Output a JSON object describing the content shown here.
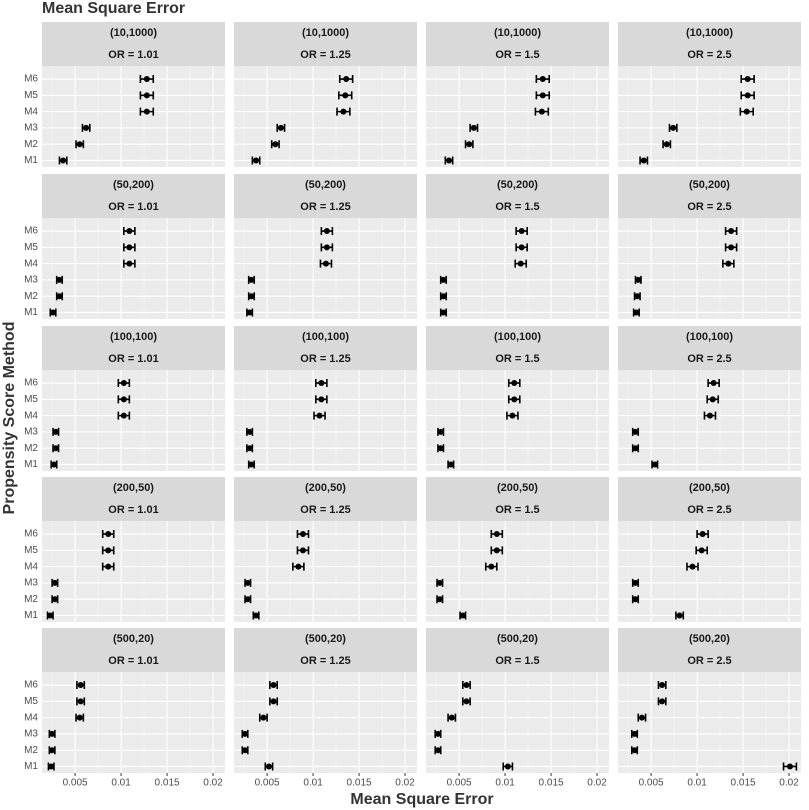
{
  "title": "Mean Square Error",
  "x_label": "Mean Square Error",
  "y_label": "Propensity Score Method",
  "chart_data": [
    {
      "type": "errorbar",
      "facet_row": "(10,1000)",
      "facet_col": "OR = 1.01",
      "categories": [
        "M1",
        "M2",
        "M3",
        "M4",
        "M5",
        "M6"
      ],
      "values": [
        0.0037,
        0.0055,
        0.0062,
        0.0128,
        0.0128,
        0.0128
      ],
      "errors": [
        0.0004,
        0.0004,
        0.0004,
        0.0007,
        0.0007,
        0.0007
      ],
      "xlim": [
        0.0014,
        0.0213
      ],
      "xticks": [
        0.005,
        0.01,
        0.015,
        0.02
      ],
      "grid": true,
      "color": "#000000"
    },
    {
      "type": "errorbar",
      "facet_row": "(10,1000)",
      "facet_col": "OR = 1.25",
      "categories": [
        "M1",
        "M2",
        "M3",
        "M4",
        "M5",
        "M6"
      ],
      "values": [
        0.0038,
        0.0059,
        0.0065,
        0.0133,
        0.0135,
        0.0136
      ],
      "errors": [
        0.0004,
        0.0004,
        0.0004,
        0.0007,
        0.0007,
        0.0007
      ],
      "xlim": [
        0.0014,
        0.0213
      ],
      "xticks": [
        0.005,
        0.01,
        0.015,
        0.02
      ],
      "grid": true,
      "color": "#000000"
    },
    {
      "type": "errorbar",
      "facet_row": "(10,1000)",
      "facet_col": "OR = 1.5",
      "categories": [
        "M1",
        "M2",
        "M3",
        "M4",
        "M5",
        "M6"
      ],
      "values": [
        0.0039,
        0.0061,
        0.0066,
        0.014,
        0.0141,
        0.0141
      ],
      "errors": [
        0.0004,
        0.0004,
        0.0004,
        0.0007,
        0.0007,
        0.0007
      ],
      "xlim": [
        0.0014,
        0.0213
      ],
      "xticks": [
        0.005,
        0.01,
        0.015,
        0.02
      ],
      "grid": true,
      "color": "#000000"
    },
    {
      "type": "errorbar",
      "facet_row": "(10,1000)",
      "facet_col": "OR = 2.5",
      "categories": [
        "M1",
        "M2",
        "M3",
        "M4",
        "M5",
        "M6"
      ],
      "values": [
        0.0042,
        0.0067,
        0.0074,
        0.0154,
        0.0155,
        0.0155
      ],
      "errors": [
        0.0004,
        0.0004,
        0.0004,
        0.0007,
        0.0007,
        0.0007
      ],
      "xlim": [
        0.0014,
        0.0213
      ],
      "xticks": [
        0.005,
        0.01,
        0.015,
        0.02
      ],
      "grid": true,
      "color": "#000000"
    },
    {
      "type": "errorbar",
      "facet_row": "(50,200)",
      "facet_col": "OR = 1.01",
      "categories": [
        "M1",
        "M2",
        "M3",
        "M4",
        "M5",
        "M6"
      ],
      "values": [
        0.0026,
        0.0033,
        0.0033,
        0.0109,
        0.0109,
        0.0109
      ],
      "errors": [
        0.0003,
        0.0003,
        0.0003,
        0.0006,
        0.0006,
        0.0006
      ],
      "xlim": [
        0.0014,
        0.0213
      ],
      "xticks": [
        0.005,
        0.01,
        0.015,
        0.02
      ],
      "grid": true,
      "color": "#000000"
    },
    {
      "type": "errorbar",
      "facet_row": "(50,200)",
      "facet_col": "OR = 1.25",
      "categories": [
        "M1",
        "M2",
        "M3",
        "M4",
        "M5",
        "M6"
      ],
      "values": [
        0.0031,
        0.0033,
        0.0033,
        0.0114,
        0.0115,
        0.0115
      ],
      "errors": [
        0.0003,
        0.0003,
        0.0003,
        0.0006,
        0.0006,
        0.0006
      ],
      "xlim": [
        0.0014,
        0.0213
      ],
      "xticks": [
        0.005,
        0.01,
        0.015,
        0.02
      ],
      "grid": true,
      "color": "#000000"
    },
    {
      "type": "errorbar",
      "facet_row": "(50,200)",
      "facet_col": "OR = 1.5",
      "categories": [
        "M1",
        "M2",
        "M3",
        "M4",
        "M5",
        "M6"
      ],
      "values": [
        0.0033,
        0.0033,
        0.0033,
        0.0117,
        0.0118,
        0.0118
      ],
      "errors": [
        0.0003,
        0.0003,
        0.0003,
        0.0006,
        0.0006,
        0.0006
      ],
      "xlim": [
        0.0014,
        0.0213
      ],
      "xticks": [
        0.005,
        0.01,
        0.015,
        0.02
      ],
      "grid": true,
      "color": "#000000"
    },
    {
      "type": "errorbar",
      "facet_row": "(50,200)",
      "facet_col": "OR = 2.5",
      "categories": [
        "M1",
        "M2",
        "M3",
        "M4",
        "M5",
        "M6"
      ],
      "values": [
        0.0034,
        0.0035,
        0.0036,
        0.0134,
        0.0137,
        0.0137
      ],
      "errors": [
        0.0003,
        0.0003,
        0.0003,
        0.0006,
        0.0006,
        0.0006
      ],
      "xlim": [
        0.0014,
        0.0213
      ],
      "xticks": [
        0.005,
        0.01,
        0.015,
        0.02
      ],
      "grid": true,
      "color": "#000000"
    },
    {
      "type": "errorbar",
      "facet_row": "(100,100)",
      "facet_col": "OR = 1.01",
      "categories": [
        "M1",
        "M2",
        "M3",
        "M4",
        "M5",
        "M6"
      ],
      "values": [
        0.0027,
        0.0029,
        0.0029,
        0.0103,
        0.0103,
        0.0103
      ],
      "errors": [
        0.0003,
        0.0003,
        0.0003,
        0.0006,
        0.0006,
        0.0006
      ],
      "xlim": [
        0.0014,
        0.0213
      ],
      "xticks": [
        0.005,
        0.01,
        0.015,
        0.02
      ],
      "grid": true,
      "color": "#000000"
    },
    {
      "type": "errorbar",
      "facet_row": "(100,100)",
      "facet_col": "OR = 1.25",
      "categories": [
        "M1",
        "M2",
        "M3",
        "M4",
        "M5",
        "M6"
      ],
      "values": [
        0.0033,
        0.0031,
        0.0031,
        0.0107,
        0.0109,
        0.0109
      ],
      "errors": [
        0.0003,
        0.0003,
        0.0003,
        0.0006,
        0.0006,
        0.0006
      ],
      "xlim": [
        0.0014,
        0.0213
      ],
      "xticks": [
        0.005,
        0.01,
        0.015,
        0.02
      ],
      "grid": true,
      "color": "#000000"
    },
    {
      "type": "errorbar",
      "facet_row": "(100,100)",
      "facet_col": "OR = 1.5",
      "categories": [
        "M1",
        "M2",
        "M3",
        "M4",
        "M5",
        "M6"
      ],
      "values": [
        0.0041,
        0.003,
        0.003,
        0.0108,
        0.011,
        0.011
      ],
      "errors": [
        0.0003,
        0.0003,
        0.0003,
        0.0006,
        0.0006,
        0.0006
      ],
      "xlim": [
        0.0014,
        0.0213
      ],
      "xticks": [
        0.005,
        0.01,
        0.015,
        0.02
      ],
      "grid": true,
      "color": "#000000"
    },
    {
      "type": "errorbar",
      "facet_row": "(100,100)",
      "facet_col": "OR = 2.5",
      "categories": [
        "M1",
        "M2",
        "M3",
        "M4",
        "M5",
        "M6"
      ],
      "values": [
        0.0054,
        0.0033,
        0.0033,
        0.0114,
        0.0117,
        0.0118
      ],
      "errors": [
        0.0003,
        0.0003,
        0.0003,
        0.0006,
        0.0006,
        0.0006
      ],
      "xlim": [
        0.0014,
        0.0213
      ],
      "xticks": [
        0.005,
        0.01,
        0.015,
        0.02
      ],
      "grid": true,
      "color": "#000000"
    },
    {
      "type": "errorbar",
      "facet_row": "(200,50)",
      "facet_col": "OR = 1.01",
      "categories": [
        "M1",
        "M2",
        "M3",
        "M4",
        "M5",
        "M6"
      ],
      "values": [
        0.0023,
        0.0028,
        0.0028,
        0.0086,
        0.0086,
        0.0086
      ],
      "errors": [
        0.0003,
        0.0003,
        0.0003,
        0.0006,
        0.0006,
        0.0006
      ],
      "xlim": [
        0.0014,
        0.0213
      ],
      "xticks": [
        0.005,
        0.01,
        0.015,
        0.02
      ],
      "grid": true,
      "color": "#000000"
    },
    {
      "type": "errorbar",
      "facet_row": "(200,50)",
      "facet_col": "OR = 1.25",
      "categories": [
        "M1",
        "M2",
        "M3",
        "M4",
        "M5",
        "M6"
      ],
      "values": [
        0.0038,
        0.0029,
        0.0029,
        0.0084,
        0.0089,
        0.0089
      ],
      "errors": [
        0.0003,
        0.0003,
        0.0003,
        0.0006,
        0.0006,
        0.0006
      ],
      "xlim": [
        0.0014,
        0.0213
      ],
      "xticks": [
        0.005,
        0.01,
        0.015,
        0.02
      ],
      "grid": true,
      "color": "#000000"
    },
    {
      "type": "errorbar",
      "facet_row": "(200,50)",
      "facet_col": "OR = 1.5",
      "categories": [
        "M1",
        "M2",
        "M3",
        "M4",
        "M5",
        "M6"
      ],
      "values": [
        0.0054,
        0.0029,
        0.0029,
        0.0085,
        0.0091,
        0.0091
      ],
      "errors": [
        0.0003,
        0.0003,
        0.0003,
        0.0006,
        0.0006,
        0.0006
      ],
      "xlim": [
        0.0014,
        0.0213
      ],
      "xticks": [
        0.005,
        0.01,
        0.015,
        0.02
      ],
      "grid": true,
      "color": "#000000"
    },
    {
      "type": "errorbar",
      "facet_row": "(200,50)",
      "facet_col": "OR = 2.5",
      "categories": [
        "M1",
        "M2",
        "M3",
        "M4",
        "M5",
        "M6"
      ],
      "values": [
        0.0081,
        0.0033,
        0.0033,
        0.0095,
        0.0105,
        0.0106
      ],
      "errors": [
        0.0004,
        0.0003,
        0.0003,
        0.0006,
        0.0006,
        0.0006
      ],
      "xlim": [
        0.0014,
        0.0213
      ],
      "xticks": [
        0.005,
        0.01,
        0.015,
        0.02
      ],
      "grid": true,
      "color": "#000000"
    },
    {
      "type": "errorbar",
      "facet_row": "(500,20)",
      "facet_col": "OR = 1.01",
      "categories": [
        "M1",
        "M2",
        "M3",
        "M4",
        "M5",
        "M6"
      ],
      "values": [
        0.0024,
        0.0025,
        0.0025,
        0.0055,
        0.0056,
        0.0056
      ],
      "errors": [
        0.0003,
        0.0003,
        0.0003,
        0.0004,
        0.0004,
        0.0004
      ],
      "xlim": [
        0.0014,
        0.0213
      ],
      "xticks": [
        0.005,
        0.01,
        0.015,
        0.02
      ],
      "grid": true,
      "color": "#000000"
    },
    {
      "type": "errorbar",
      "facet_row": "(500,20)",
      "facet_col": "OR = 1.25",
      "categories": [
        "M1",
        "M2",
        "M3",
        "M4",
        "M5",
        "M6"
      ],
      "values": [
        0.0052,
        0.0026,
        0.0026,
        0.0046,
        0.0057,
        0.0057
      ],
      "errors": [
        0.0004,
        0.0003,
        0.0003,
        0.0004,
        0.0004,
        0.0004
      ],
      "xlim": [
        0.0014,
        0.0213
      ],
      "xticks": [
        0.005,
        0.01,
        0.015,
        0.02
      ],
      "grid": true,
      "color": "#000000"
    },
    {
      "type": "errorbar",
      "facet_row": "(500,20)",
      "facet_col": "OR = 1.5",
      "categories": [
        "M1",
        "M2",
        "M3",
        "M4",
        "M5",
        "M6"
      ],
      "values": [
        0.0103,
        0.0027,
        0.0027,
        0.0042,
        0.0058,
        0.0058
      ],
      "errors": [
        0.0005,
        0.0003,
        0.0003,
        0.0004,
        0.0004,
        0.0004
      ],
      "xlim": [
        0.0014,
        0.0213
      ],
      "xticks": [
        0.005,
        0.01,
        0.015,
        0.02
      ],
      "grid": true,
      "color": "#000000"
    },
    {
      "type": "errorbar",
      "facet_row": "(500,20)",
      "facet_col": "OR = 2.5",
      "categories": [
        "M1",
        "M2",
        "M3",
        "M4",
        "M5",
        "M6"
      ],
      "values": [
        0.0201,
        0.0032,
        0.0032,
        0.004,
        0.0062,
        0.0062
      ],
      "errors": [
        0.0007,
        0.0003,
        0.0003,
        0.0004,
        0.0004,
        0.0004
      ],
      "xlim": [
        0.0014,
        0.0213
      ],
      "xticks": [
        0.005,
        0.01,
        0.015,
        0.02
      ],
      "grid": true,
      "color": "#000000"
    }
  ]
}
